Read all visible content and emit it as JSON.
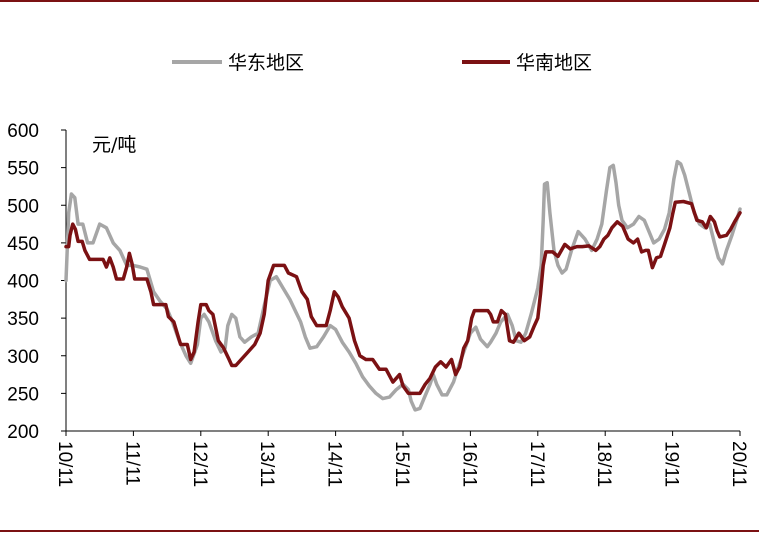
{
  "chart_data": {
    "type": "line",
    "unit_label": "元/吨",
    "x_ticks": [
      "10/11",
      "11/11",
      "12/11",
      "13/11",
      "14/11",
      "15/11",
      "16/11",
      "17/11",
      "18/11",
      "19/11",
      "20/11"
    ],
    "y_ticks": [
      "200",
      "250",
      "300",
      "350",
      "400",
      "450",
      "500",
      "550",
      "600"
    ],
    "ylim": [
      200,
      600
    ],
    "xlim": [
      0,
      10
    ],
    "grid": false,
    "legend_position": "top",
    "series": [
      {
        "name": "华东地区",
        "color": "#a6a6a6",
        "points": [
          [
            0.0,
            400
          ],
          [
            0.04,
            490
          ],
          [
            0.08,
            515
          ],
          [
            0.13,
            510
          ],
          [
            0.18,
            475
          ],
          [
            0.25,
            475
          ],
          [
            0.32,
            450
          ],
          [
            0.4,
            450
          ],
          [
            0.5,
            475
          ],
          [
            0.6,
            470
          ],
          [
            0.7,
            450
          ],
          [
            0.8,
            440
          ],
          [
            0.9,
            420
          ],
          [
            1.0,
            420
          ],
          [
            1.1,
            418
          ],
          [
            1.2,
            415
          ],
          [
            1.3,
            385
          ],
          [
            1.4,
            372
          ],
          [
            1.5,
            362
          ],
          [
            1.58,
            345
          ],
          [
            1.68,
            320
          ],
          [
            1.78,
            300
          ],
          [
            1.85,
            290
          ],
          [
            1.95,
            315
          ],
          [
            2.0,
            350
          ],
          [
            2.05,
            355
          ],
          [
            2.12,
            345
          ],
          [
            2.22,
            320
          ],
          [
            2.3,
            305
          ],
          [
            2.36,
            310
          ],
          [
            2.4,
            340
          ],
          [
            2.46,
            355
          ],
          [
            2.52,
            350
          ],
          [
            2.58,
            325
          ],
          [
            2.65,
            318
          ],
          [
            2.75,
            325
          ],
          [
            2.85,
            330
          ],
          [
            2.95,
            370
          ],
          [
            3.03,
            400
          ],
          [
            3.12,
            405
          ],
          [
            3.22,
            390
          ],
          [
            3.32,
            375
          ],
          [
            3.4,
            360
          ],
          [
            3.48,
            345
          ],
          [
            3.55,
            325
          ],
          [
            3.62,
            310
          ],
          [
            3.72,
            312
          ],
          [
            3.82,
            325
          ],
          [
            3.92,
            340
          ],
          [
            4.0,
            335
          ],
          [
            4.1,
            318
          ],
          [
            4.2,
            305
          ],
          [
            4.3,
            290
          ],
          [
            4.4,
            272
          ],
          [
            4.5,
            260
          ],
          [
            4.6,
            250
          ],
          [
            4.7,
            243
          ],
          [
            4.8,
            245
          ],
          [
            4.9,
            255
          ],
          [
            5.0,
            262
          ],
          [
            5.08,
            255
          ],
          [
            5.12,
            240
          ],
          [
            5.18,
            228
          ],
          [
            5.25,
            230
          ],
          [
            5.32,
            245
          ],
          [
            5.4,
            262
          ],
          [
            5.45,
            275
          ],
          [
            5.5,
            262
          ],
          [
            5.58,
            248
          ],
          [
            5.65,
            248
          ],
          [
            5.75,
            265
          ],
          [
            5.82,
            285
          ],
          [
            5.9,
            305
          ],
          [
            6.0,
            330
          ],
          [
            6.08,
            338
          ],
          [
            6.15,
            322
          ],
          [
            6.25,
            312
          ],
          [
            6.3,
            318
          ],
          [
            6.38,
            330
          ],
          [
            6.45,
            345
          ],
          [
            6.55,
            355
          ],
          [
            6.62,
            340
          ],
          [
            6.68,
            320
          ],
          [
            6.75,
            318
          ],
          [
            6.82,
            330
          ],
          [
            6.9,
            355
          ],
          [
            7.0,
            390
          ],
          [
            7.05,
            420
          ],
          [
            7.08,
            480
          ],
          [
            7.1,
            528
          ],
          [
            7.14,
            530
          ],
          [
            7.18,
            490
          ],
          [
            7.24,
            440
          ],
          [
            7.3,
            420
          ],
          [
            7.36,
            410
          ],
          [
            7.42,
            415
          ],
          [
            7.5,
            440
          ],
          [
            7.6,
            465
          ],
          [
            7.7,
            455
          ],
          [
            7.8,
            440
          ],
          [
            7.88,
            455
          ],
          [
            7.95,
            475
          ],
          [
            8.02,
            520
          ],
          [
            8.07,
            550
          ],
          [
            8.12,
            553
          ],
          [
            8.16,
            530
          ],
          [
            8.2,
            500
          ],
          [
            8.25,
            480
          ],
          [
            8.33,
            470
          ],
          [
            8.42,
            475
          ],
          [
            8.5,
            485
          ],
          [
            8.58,
            480
          ],
          [
            8.65,
            465
          ],
          [
            8.72,
            450
          ],
          [
            8.8,
            455
          ],
          [
            8.88,
            468
          ],
          [
            8.95,
            490
          ],
          [
            9.02,
            535
          ],
          [
            9.07,
            558
          ],
          [
            9.12,
            555
          ],
          [
            9.18,
            540
          ],
          [
            9.25,
            515
          ],
          [
            9.32,
            490
          ],
          [
            9.4,
            475
          ],
          [
            9.48,
            470
          ],
          [
            9.55,
            475
          ],
          [
            9.62,
            450
          ],
          [
            9.68,
            430
          ],
          [
            9.74,
            422
          ],
          [
            9.8,
            440
          ],
          [
            9.88,
            460
          ],
          [
            9.95,
            480
          ],
          [
            10.0,
            495
          ]
        ]
      },
      {
        "name": "华南地区",
        "color": "#7b1113",
        "points": [
          [
            0.0,
            445
          ],
          [
            0.04,
            445
          ],
          [
            0.06,
            460
          ],
          [
            0.1,
            475
          ],
          [
            0.14,
            468
          ],
          [
            0.18,
            452
          ],
          [
            0.24,
            452
          ],
          [
            0.28,
            440
          ],
          [
            0.35,
            428
          ],
          [
            0.45,
            428
          ],
          [
            0.55,
            428
          ],
          [
            0.6,
            418
          ],
          [
            0.65,
            430
          ],
          [
            0.7,
            418
          ],
          [
            0.75,
            402
          ],
          [
            0.85,
            402
          ],
          [
            0.9,
            418
          ],
          [
            0.94,
            436
          ],
          [
            0.98,
            422
          ],
          [
            1.02,
            402
          ],
          [
            1.12,
            402
          ],
          [
            1.2,
            402
          ],
          [
            1.26,
            385
          ],
          [
            1.3,
            368
          ],
          [
            1.36,
            368
          ],
          [
            1.48,
            368
          ],
          [
            1.52,
            352
          ],
          [
            1.6,
            345
          ],
          [
            1.65,
            330
          ],
          [
            1.7,
            315
          ],
          [
            1.8,
            315
          ],
          [
            1.85,
            295
          ],
          [
            1.9,
            305
          ],
          [
            1.96,
            345
          ],
          [
            2.0,
            368
          ],
          [
            2.08,
            368
          ],
          [
            2.12,
            360
          ],
          [
            2.18,
            355
          ],
          [
            2.26,
            320
          ],
          [
            2.34,
            310
          ],
          [
            2.42,
            295
          ],
          [
            2.46,
            287
          ],
          [
            2.52,
            287
          ],
          [
            2.6,
            295
          ],
          [
            2.7,
            305
          ],
          [
            2.8,
            315
          ],
          [
            2.88,
            330
          ],
          [
            2.94,
            355
          ],
          [
            3.0,
            400
          ],
          [
            3.08,
            420
          ],
          [
            3.24,
            420
          ],
          [
            3.3,
            410
          ],
          [
            3.42,
            405
          ],
          [
            3.5,
            385
          ],
          [
            3.58,
            375
          ],
          [
            3.64,
            352
          ],
          [
            3.72,
            340
          ],
          [
            3.86,
            340
          ],
          [
            3.92,
            360
          ],
          [
            3.98,
            385
          ],
          [
            4.04,
            378
          ],
          [
            4.1,
            365
          ],
          [
            4.2,
            350
          ],
          [
            4.28,
            320
          ],
          [
            4.36,
            300
          ],
          [
            4.45,
            295
          ],
          [
            4.55,
            295
          ],
          [
            4.65,
            282
          ],
          [
            4.75,
            282
          ],
          [
            4.85,
            265
          ],
          [
            4.95,
            275
          ],
          [
            5.0,
            260
          ],
          [
            5.08,
            250
          ],
          [
            5.25,
            250
          ],
          [
            5.33,
            262
          ],
          [
            5.4,
            270
          ],
          [
            5.48,
            285
          ],
          [
            5.56,
            292
          ],
          [
            5.64,
            285
          ],
          [
            5.72,
            295
          ],
          [
            5.78,
            275
          ],
          [
            5.84,
            285
          ],
          [
            5.9,
            310
          ],
          [
            5.96,
            320
          ],
          [
            6.02,
            350
          ],
          [
            6.06,
            360
          ],
          [
            6.26,
            360
          ],
          [
            6.3,
            355
          ],
          [
            6.34,
            345
          ],
          [
            6.4,
            345
          ],
          [
            6.46,
            360
          ],
          [
            6.52,
            355
          ],
          [
            6.58,
            320
          ],
          [
            6.64,
            318
          ],
          [
            6.72,
            330
          ],
          [
            6.8,
            320
          ],
          [
            6.88,
            325
          ],
          [
            6.95,
            340
          ],
          [
            7.0,
            350
          ],
          [
            7.04,
            382
          ],
          [
            7.08,
            420
          ],
          [
            7.12,
            438
          ],
          [
            7.22,
            438
          ],
          [
            7.3,
            432
          ],
          [
            7.4,
            448
          ],
          [
            7.48,
            442
          ],
          [
            7.58,
            445
          ],
          [
            7.66,
            445
          ],
          [
            7.76,
            446
          ],
          [
            7.86,
            440
          ],
          [
            7.92,
            445
          ],
          [
            7.98,
            455
          ],
          [
            8.04,
            460
          ],
          [
            8.1,
            470
          ],
          [
            8.18,
            478
          ],
          [
            8.26,
            472
          ],
          [
            8.34,
            455
          ],
          [
            8.42,
            450
          ],
          [
            8.48,
            455
          ],
          [
            8.54,
            438
          ],
          [
            8.6,
            440
          ],
          [
            8.64,
            440
          ],
          [
            8.7,
            417
          ],
          [
            8.76,
            430
          ],
          [
            8.82,
            432
          ],
          [
            8.88,
            448
          ],
          [
            8.96,
            470
          ],
          [
            9.0,
            488
          ],
          [
            9.04,
            504
          ],
          [
            9.16,
            505
          ],
          [
            9.28,
            502
          ],
          [
            9.36,
            480
          ],
          [
            9.44,
            478
          ],
          [
            9.5,
            470
          ],
          [
            9.56,
            485
          ],
          [
            9.62,
            478
          ],
          [
            9.66,
            466
          ],
          [
            9.7,
            458
          ],
          [
            9.8,
            460
          ],
          [
            9.86,
            468
          ],
          [
            9.92,
            478
          ],
          [
            10.0,
            490
          ]
        ]
      }
    ]
  }
}
